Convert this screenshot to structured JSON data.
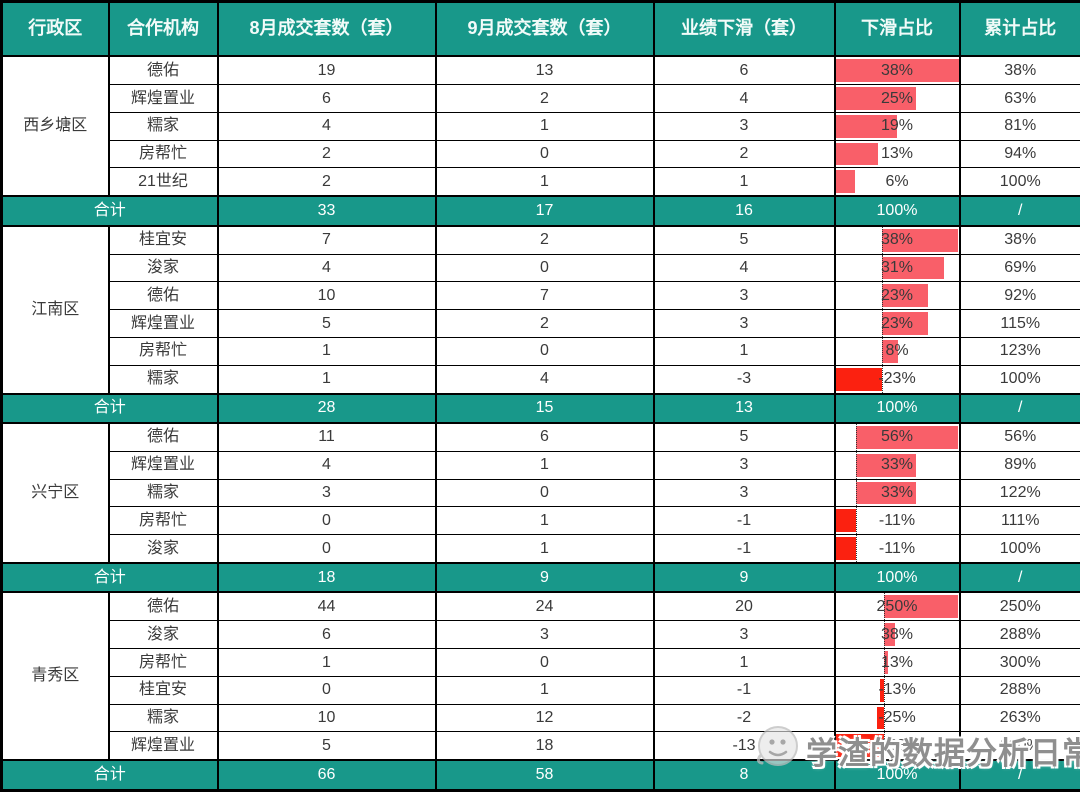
{
  "colors": {
    "header_bg": "#18988a",
    "header_text": "#f2fbf9",
    "total_bg": "#18988a",
    "total_text": "#ffffff",
    "body_text": "#3a3a3a",
    "bar_positive": "#f95f69",
    "bar_negative": "#fb2110",
    "grid": "#000000"
  },
  "watermark": {
    "text": "学渣的数据分析日常",
    "icon": "wechat-face-icon"
  },
  "chart_data": {
    "type": "table",
    "columns": [
      "行政区",
      "合作机构",
      "8月成交套数（套）",
      "9月成交套数（套）",
      "业绩下滑（套）",
      "下滑占比",
      "累计占比"
    ],
    "total_label": "合计",
    "bar_column": "下滑占比",
    "bar_scaling": "per-group auto min/max with dotted zero axis when negatives present",
    "groups": [
      {
        "district": "西乡塘区",
        "rows": [
          {
            "agency": "德佑",
            "aug": 19,
            "sep": 13,
            "decline": 6,
            "decline_pct": 38,
            "decline_pct_label": "38%",
            "cum_pct_label": "38%"
          },
          {
            "agency": "辉煌置业",
            "aug": 6,
            "sep": 2,
            "decline": 4,
            "decline_pct": 25,
            "decline_pct_label": "25%",
            "cum_pct_label": "63%"
          },
          {
            "agency": "糯家",
            "aug": 4,
            "sep": 1,
            "decline": 3,
            "decline_pct": 19,
            "decline_pct_label": "19%",
            "cum_pct_label": "81%"
          },
          {
            "agency": "房帮忙",
            "aug": 2,
            "sep": 0,
            "decline": 2,
            "decline_pct": 13,
            "decline_pct_label": "13%",
            "cum_pct_label": "94%"
          },
          {
            "agency": "21世纪",
            "aug": 2,
            "sep": 1,
            "decline": 1,
            "decline_pct": 6,
            "decline_pct_label": "6%",
            "cum_pct_label": "100%"
          }
        ],
        "total": {
          "aug": 33,
          "sep": 17,
          "decline": 16,
          "decline_pct_label": "100%",
          "cum_pct_label": "/"
        }
      },
      {
        "district": "江南区",
        "rows": [
          {
            "agency": "桂宜安",
            "aug": 7,
            "sep": 2,
            "decline": 5,
            "decline_pct": 38,
            "decline_pct_label": "38%",
            "cum_pct_label": "38%"
          },
          {
            "agency": "浚家",
            "aug": 4,
            "sep": 0,
            "decline": 4,
            "decline_pct": 31,
            "decline_pct_label": "31%",
            "cum_pct_label": "69%"
          },
          {
            "agency": "德佑",
            "aug": 10,
            "sep": 7,
            "decline": 3,
            "decline_pct": 23,
            "decline_pct_label": "23%",
            "cum_pct_label": "92%"
          },
          {
            "agency": "辉煌置业",
            "aug": 5,
            "sep": 2,
            "decline": 3,
            "decline_pct": 23,
            "decline_pct_label": "23%",
            "cum_pct_label": "115%"
          },
          {
            "agency": "房帮忙",
            "aug": 1,
            "sep": 0,
            "decline": 1,
            "decline_pct": 8,
            "decline_pct_label": "8%",
            "cum_pct_label": "123%"
          },
          {
            "agency": "糯家",
            "aug": 1,
            "sep": 4,
            "decline": -3,
            "decline_pct": -23,
            "decline_pct_label": "-23%",
            "cum_pct_label": "100%"
          }
        ],
        "total": {
          "aug": 28,
          "sep": 15,
          "decline": 13,
          "decline_pct_label": "100%",
          "cum_pct_label": "/"
        }
      },
      {
        "district": "兴宁区",
        "rows": [
          {
            "agency": "德佑",
            "aug": 11,
            "sep": 6,
            "decline": 5,
            "decline_pct": 56,
            "decline_pct_label": "56%",
            "cum_pct_label": "56%"
          },
          {
            "agency": "辉煌置业",
            "aug": 4,
            "sep": 1,
            "decline": 3,
            "decline_pct": 33,
            "decline_pct_label": "33%",
            "cum_pct_label": "89%"
          },
          {
            "agency": "糯家",
            "aug": 3,
            "sep": 0,
            "decline": 3,
            "decline_pct": 33,
            "decline_pct_label": "33%",
            "cum_pct_label": "122%"
          },
          {
            "agency": "房帮忙",
            "aug": 0,
            "sep": 1,
            "decline": -1,
            "decline_pct": -11,
            "decline_pct_label": "-11%",
            "cum_pct_label": "111%"
          },
          {
            "agency": "浚家",
            "aug": 0,
            "sep": 1,
            "decline": -1,
            "decline_pct": -11,
            "decline_pct_label": "-11%",
            "cum_pct_label": "100%"
          }
        ],
        "total": {
          "aug": 18,
          "sep": 9,
          "decline": 9,
          "decline_pct_label": "100%",
          "cum_pct_label": "/"
        }
      },
      {
        "district": "青秀区",
        "rows": [
          {
            "agency": "德佑",
            "aug": 44,
            "sep": 24,
            "decline": 20,
            "decline_pct": 250,
            "decline_pct_label": "250%",
            "cum_pct_label": "250%"
          },
          {
            "agency": "浚家",
            "aug": 6,
            "sep": 3,
            "decline": 3,
            "decline_pct": 38,
            "decline_pct_label": "38%",
            "cum_pct_label": "288%"
          },
          {
            "agency": "房帮忙",
            "aug": 1,
            "sep": 0,
            "decline": 1,
            "decline_pct": 13,
            "decline_pct_label": "13%",
            "cum_pct_label": "300%"
          },
          {
            "agency": "桂宜安",
            "aug": 0,
            "sep": 1,
            "decline": -1,
            "decline_pct": -13,
            "decline_pct_label": "-13%",
            "cum_pct_label": "288%"
          },
          {
            "agency": "糯家",
            "aug": 10,
            "sep": 12,
            "decline": -2,
            "decline_pct": -25,
            "decline_pct_label": "-25%",
            "cum_pct_label": "263%"
          },
          {
            "agency": "辉煌置业",
            "aug": 5,
            "sep": 18,
            "decline": -13,
            "decline_pct": -163,
            "decline_pct_label": "-163%",
            "cum_pct_label": "100%"
          }
        ],
        "total": {
          "aug": 66,
          "sep": 58,
          "decline": 8,
          "decline_pct_label": "100%",
          "cum_pct_label": "/"
        }
      }
    ]
  }
}
